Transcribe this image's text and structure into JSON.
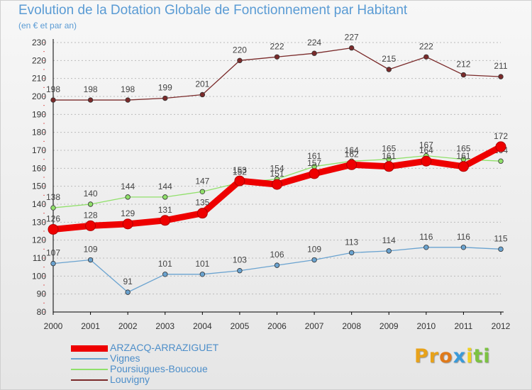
{
  "header": {
    "title": "Evolution de la Dotation Globale de Fonctionnement par Habitant",
    "subtitle": "(en € et par an)"
  },
  "colors": {
    "axis": "#000000",
    "grid": "#bbbbbb",
    "tick_text": "#333333",
    "label_text": "#444444",
    "legend_text": "#4d8ec9"
  },
  "chart_data": {
    "type": "line",
    "x": [
      "2000",
      "2001",
      "2002",
      "2003",
      "2004",
      "2005",
      "2006",
      "2007",
      "2008",
      "2009",
      "2010",
      "2011",
      "2012"
    ],
    "ylim": [
      80,
      230
    ],
    "yticks": [
      "80",
      "90",
      "100",
      "110",
      "120",
      "130",
      "140",
      "150",
      "160",
      "170",
      "180",
      "190",
      "200",
      "210",
      "220",
      "230"
    ],
    "grid": "horizontal dashed",
    "legend_position": "bottom-left",
    "series": [
      {
        "name": "Louvigny",
        "color": "#7a2a2a",
        "values": [
          198,
          198,
          198,
          199,
          201,
          220,
          222,
          224,
          227,
          215,
          222,
          212,
          211
        ],
        "labels": [
          "198",
          "198",
          "198",
          "199",
          "201",
          "220",
          "222",
          "224",
          "227",
          "215",
          "222",
          "212",
          "211"
        ]
      },
      {
        "name": "Poursiugues-Boucoue",
        "color": "#90e06a",
        "values": [
          138,
          140,
          144,
          144,
          147,
          152,
          154,
          161,
          164,
          165,
          167,
          165,
          164
        ],
        "labels": [
          "138",
          "140",
          "144",
          "144",
          "147",
          "152",
          "154",
          "161",
          "164",
          "165",
          "167",
          "165",
          "164"
        ]
      },
      {
        "name": "Vignes",
        "color": "#6aa3d0",
        "values": [
          107,
          109,
          91,
          101,
          101,
          103,
          106,
          109,
          113,
          114,
          116,
          116,
          115
        ],
        "labels": [
          "107",
          "109",
          "91",
          "101",
          "101",
          "103",
          "106",
          "109",
          "113",
          "114",
          "116",
          "116",
          "115"
        ]
      },
      {
        "name": "ARZACQ-ARRAZIGUET",
        "color": "#ee0000",
        "values": [
          126,
          128,
          129,
          131,
          135,
          153,
          151,
          157,
          162,
          161,
          164,
          161,
          172
        ],
        "labels": [
          "126",
          "128",
          "129",
          "131",
          "135",
          "153",
          "151",
          "157",
          "162",
          "161",
          "164",
          "161",
          "172"
        ]
      }
    ]
  },
  "legend": {
    "items": [
      {
        "label": "ARZACQ-ARRAZIGUET",
        "color": "#ee0000",
        "thickness": "thick"
      },
      {
        "label": "Vignes",
        "color": "#6aa3d0",
        "thickness": "thin"
      },
      {
        "label": "Poursiugues-Boucoue",
        "color": "#90e06a",
        "thickness": "thin"
      },
      {
        "label": "Louvigny",
        "color": "#7a2a2a",
        "thickness": "thin"
      }
    ]
  },
  "logo": {
    "letters": [
      {
        "ch": "P",
        "color": "#e8a21a"
      },
      {
        "ch": "r",
        "color": "#e8a21a"
      },
      {
        "ch": "o",
        "color": "#e07a1a"
      },
      {
        "ch": "x",
        "color": "#3a9ad9"
      },
      {
        "ch": "i",
        "color": "#f0d020"
      },
      {
        "ch": "t",
        "color": "#7cc242"
      },
      {
        "ch": "i",
        "color": "#7cc242"
      }
    ]
  }
}
